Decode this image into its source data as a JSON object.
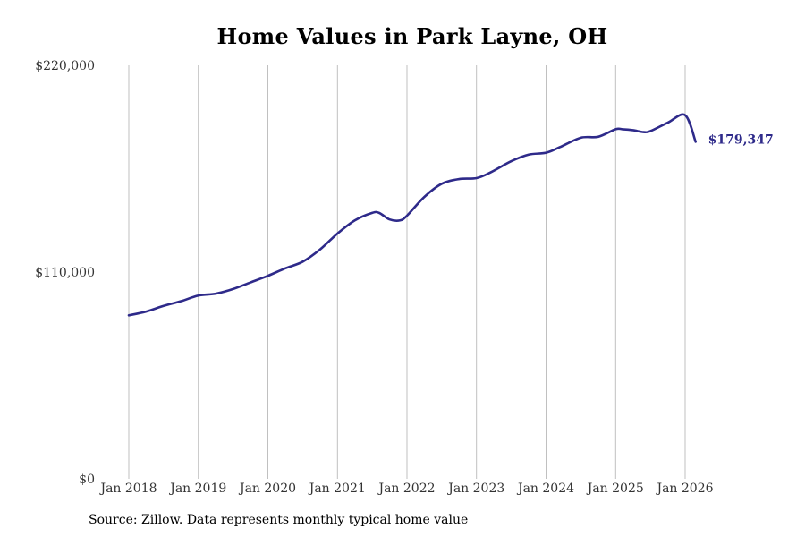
{
  "chart_data": {
    "type": "line",
    "title": "Home Values in Park Layne, OH",
    "xlabel": "",
    "ylabel": "",
    "ylim": [
      0,
      220000
    ],
    "y_ticks": [
      {
        "value": 0,
        "label": "$0"
      },
      {
        "value": 110000,
        "label": "$110,000"
      },
      {
        "value": 220000,
        "label": "$220,000"
      }
    ],
    "x_ticks": [
      {
        "value": 2018.0,
        "label": "Jan 2018"
      },
      {
        "value": 2019.0,
        "label": "Jan 2019"
      },
      {
        "value": 2020.0,
        "label": "Jan 2020"
      },
      {
        "value": 2021.0,
        "label": "Jan 2021"
      },
      {
        "value": 2022.0,
        "label": "Jan 2022"
      },
      {
        "value": 2023.0,
        "label": "Jan 2023"
      },
      {
        "value": 2024.0,
        "label": "Jan 2024"
      },
      {
        "value": 2025.0,
        "label": "Jan 2025"
      },
      {
        "value": 2026.0,
        "label": "Jan 2026"
      }
    ],
    "xlim": [
      2017.55,
      2026.7
    ],
    "grid": "vertical",
    "series": [
      {
        "name": "",
        "color": "#2e2a8a",
        "x": [
          2018.0,
          2018.25,
          2018.5,
          2018.75,
          2019.0,
          2019.25,
          2019.5,
          2019.75,
          2020.0,
          2020.25,
          2020.5,
          2020.75,
          2021.0,
          2021.25,
          2021.5,
          2021.6,
          2021.75,
          2021.9,
          2022.0,
          2022.25,
          2022.5,
          2022.75,
          2023.0,
          2023.2,
          2023.5,
          2023.75,
          2024.0,
          2024.2,
          2024.5,
          2024.75,
          2025.0,
          2025.1,
          2025.25,
          2025.4,
          2025.5,
          2025.75,
          2026.0,
          2026.15
        ],
        "values": [
          87000,
          89000,
          92000,
          94500,
          97500,
          98500,
          101000,
          104500,
          108000,
          112000,
          115500,
          122000,
          130500,
          137500,
          141500,
          141500,
          138000,
          137500,
          140000,
          150000,
          157000,
          159500,
          160000,
          163000,
          169000,
          172500,
          173500,
          176500,
          181500,
          182000,
          186000,
          186000,
          185500,
          184500,
          185000,
          189500,
          193500,
          179347
        ]
      }
    ],
    "end_label": "$179,347",
    "source": "Source: Zillow. Data represents monthly typical home value"
  }
}
